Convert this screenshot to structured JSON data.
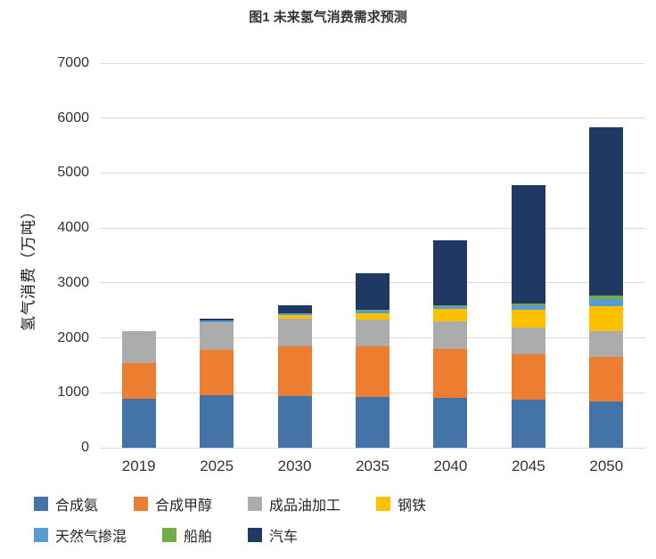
{
  "title": "图1 未来氢气消费需求预测",
  "chart_data": {
    "type": "bar",
    "stacked": true,
    "title": "图1 未来氢气消费需求预测",
    "categories": [
      "2019",
      "2025",
      "2030",
      "2035",
      "2040",
      "2045",
      "2050"
    ],
    "series": [
      {
        "name": "合成氨",
        "color": "#4473A7",
        "values": [
          890,
          950,
          940,
          930,
          900,
          880,
          850
        ]
      },
      {
        "name": "合成甲醇",
        "color": "#ED7D31",
        "values": [
          650,
          830,
          910,
          910,
          900,
          820,
          800
        ]
      },
      {
        "name": "成品油加工",
        "color": "#ACACAC",
        "values": [
          580,
          500,
          500,
          500,
          500,
          480,
          480
        ]
      },
      {
        "name": "钢铁",
        "color": "#FFC000",
        "values": [
          0,
          0,
          60,
          100,
          230,
          330,
          450
        ]
      },
      {
        "name": "天然气掺混",
        "color": "#5B9BD5",
        "values": [
          0,
          30,
          40,
          60,
          50,
          90,
          120
        ]
      },
      {
        "name": "船舶",
        "color": "#70AD47",
        "values": [
          0,
          0,
          0,
          10,
          20,
          30,
          70
        ]
      },
      {
        "name": "汽车",
        "color": "#203864",
        "values": [
          0,
          40,
          150,
          660,
          1180,
          2150,
          3060
        ]
      }
    ],
    "totals": [
      2120,
      2350,
      2600,
      3170,
      3780,
      4780,
      5830
    ],
    "xlabel": "",
    "ylabel": "氢气消费（万吨）",
    "ylim": [
      0,
      7000
    ],
    "yticks": [
      7000,
      6000,
      5000,
      4000,
      3000,
      2000,
      1000,
      0
    ],
    "grid": true,
    "legend_position": "bottom"
  },
  "legend": {
    "rows": [
      [
        0,
        1,
        2,
        3
      ],
      [
        4,
        5,
        6
      ]
    ]
  }
}
